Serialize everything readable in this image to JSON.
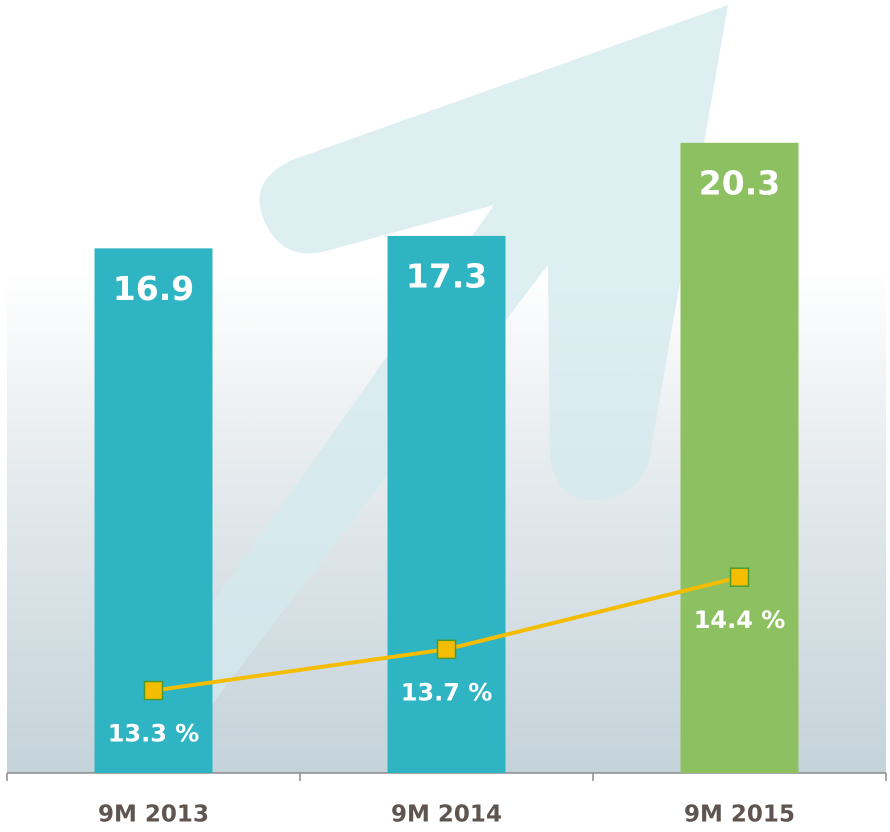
{
  "chart_data": {
    "type": "bar",
    "categories": [
      "9M 2013",
      "9M 2014",
      "9M 2015"
    ],
    "values": [
      16.9,
      17.3,
      20.3
    ],
    "colors": [
      "#2fb4c4",
      "#2fb4c4",
      "#8dc061"
    ],
    "ylim": [
      0,
      24.9
    ],
    "line": {
      "type": "line",
      "axis": "y2",
      "values": [
        13.3,
        13.7,
        14.4
      ],
      "value_labels": [
        "13.3 %",
        "13.7 %",
        "14.4 %"
      ],
      "color": "#f5bd00"
    },
    "y2lim": [
      12.5,
      20
    ]
  }
}
